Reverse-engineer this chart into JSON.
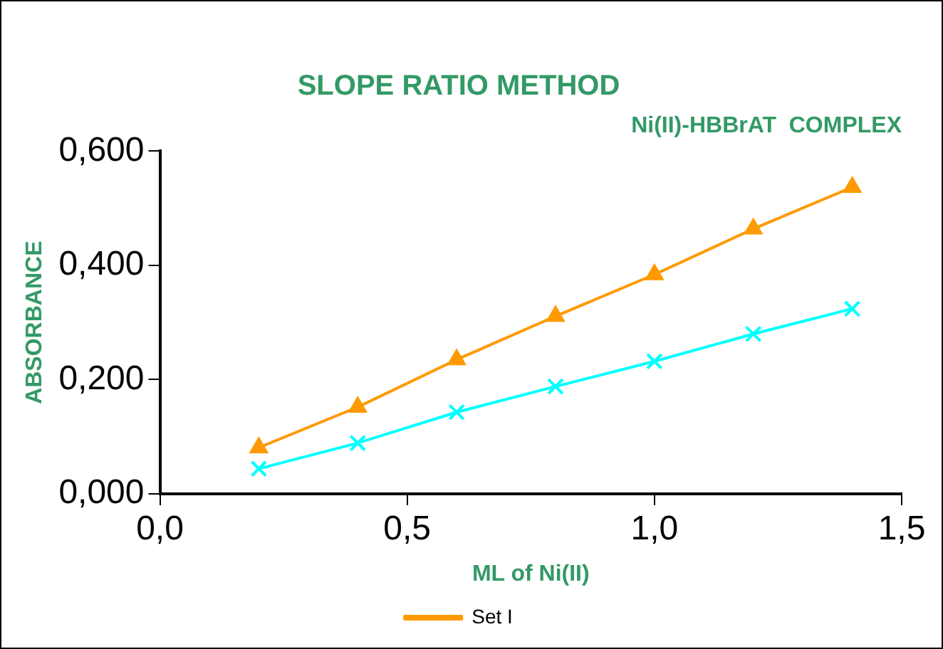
{
  "chart_data": {
    "type": "line",
    "title": "SLOPE RATIO METHOD",
    "subtitle": "Ni(II)-HBBrAT  COMPLEX",
    "xlabel": "ML of Ni(II)",
    "ylabel": "ABSORBANCE",
    "x": [
      0.2,
      0.4,
      0.6,
      0.8,
      1.0,
      1.2,
      1.4
    ],
    "series": [
      {
        "name": "Set I",
        "color": "#ff9900",
        "marker": "triangle",
        "values": [
          0.081,
          0.152,
          0.235,
          0.311,
          0.384,
          0.464,
          0.537
        ]
      },
      {
        "color": "#00ffff",
        "marker": "cross",
        "values": [
          0.044,
          0.089,
          0.143,
          0.188,
          0.232,
          0.28,
          0.324
        ]
      }
    ],
    "xlim": [
      0,
      1.5
    ],
    "xticks": [
      {
        "value": 0,
        "label": "0,0"
      },
      {
        "value": 0.5,
        "label": "0,5"
      },
      {
        "value": 1,
        "label": "1,0"
      },
      {
        "value": 1.5,
        "label": "1,5"
      }
    ],
    "ylim": [
      0,
      0.6
    ],
    "yticks": [
      {
        "value": 0,
        "label": "0,000"
      },
      {
        "value": 0.2,
        "label": "0,200"
      },
      {
        "value": 0.4,
        "label": "0,400"
      },
      {
        "value": 0.6,
        "label": "0,600"
      }
    ],
    "grid": false,
    "legend": "bottom"
  }
}
